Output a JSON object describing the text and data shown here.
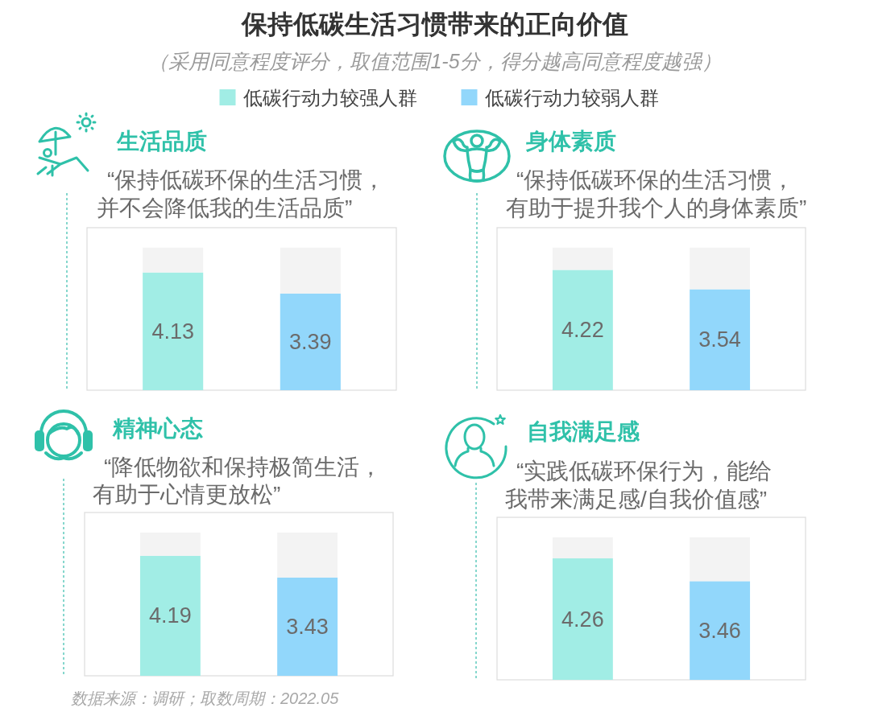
{
  "chart_data": [
    {
      "type": "other",
      "title": "保持低碳生活习惯带来的正向价值",
      "subtitle": "（采用同意程度评分，取值范围1-5分，得分越高同意程度越强）",
      "annotations": [
        "数据来源：调研；取数周期：2022.05"
      ]
    },
    {
      "type": "bar",
      "title": "生活品质",
      "subtitle": "“保持低碳环保的生活习惯，并不会降低我的生活品质”",
      "categories": [
        null,
        null
      ],
      "stacked": true,
      "ylim": [
        0,
        5.7
      ],
      "legend": "top",
      "series": [
        {
          "name": "低碳行动力较强人群",
          "color": "#a1ede5",
          "values": [
            4.13,
            null
          ],
          "value_labels": [
            "4.13",
            null
          ]
        },
        {
          "name": "低碳行动力较弱人群",
          "color": "#92d7fb",
          "values": [
            null,
            3.39
          ],
          "value_labels": [
            null,
            "3.39"
          ]
        },
        {
          "color": "#f3f3f3",
          "values": [
            0.87,
            1.61
          ]
        }
      ]
    },
    {
      "type": "bar",
      "title": "身体素质",
      "subtitle": "“保持低碳环保的生活习惯，有助于提升我个人的身体素质”",
      "categories": [
        null,
        null
      ],
      "stacked": true,
      "ylim": [
        0,
        5.7
      ],
      "series": [
        {
          "color": "#a1ede5",
          "values": [
            4.22,
            null
          ],
          "value_labels": [
            "4.22",
            null
          ]
        },
        {
          "color": "#92d7fb",
          "values": [
            null,
            3.54
          ],
          "value_labels": [
            null,
            "3.54"
          ]
        },
        {
          "color": "#f3f3f3",
          "values": [
            0.78,
            1.46
          ]
        }
      ]
    },
    {
      "type": "bar",
      "title": "精神心态",
      "subtitle": "“降低物欲和保持极简生活，有助于心情更放松”",
      "categories": [
        null,
        null
      ],
      "stacked": true,
      "ylim": [
        0,
        5.7
      ],
      "series": [
        {
          "color": "#a1ede5",
          "values": [
            4.19,
            null
          ],
          "value_labels": [
            "4.19",
            null
          ]
        },
        {
          "color": "#92d7fb",
          "values": [
            null,
            3.43
          ],
          "value_labels": [
            null,
            "3.43"
          ]
        },
        {
          "color": "#f3f3f3",
          "values": [
            0.81,
            1.57
          ]
        }
      ]
    },
    {
      "type": "bar",
      "title": "自我满足感",
      "subtitle": "“实践低碳环保行为，能给我带来满足感/自我价值感”",
      "categories": [
        null,
        null
      ],
      "stacked": true,
      "ylim": [
        0,
        5.7
      ],
      "series": [
        {
          "color": "#a1ede5",
          "values": [
            4.26,
            null
          ],
          "value_labels": [
            "4.26",
            null
          ]
        },
        {
          "color": "#92d7fb",
          "values": [
            null,
            3.46
          ],
          "value_labels": [
            null,
            "3.46"
          ]
        },
        {
          "color": "#f3f3f3",
          "values": [
            0.74,
            1.54
          ]
        }
      ]
    }
  ]
}
